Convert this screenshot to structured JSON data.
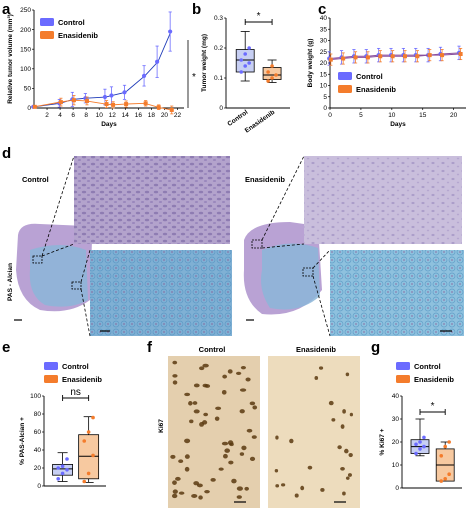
{
  "panels": {
    "a": "a",
    "b": "b",
    "c": "c",
    "d": "d",
    "e": "e",
    "f": "f",
    "g": "g"
  },
  "colors": {
    "control": "#6b6bff",
    "enasidenib": "#f47c2c",
    "control_box": "#c7cff3",
    "enasidenib_box": "#f7c9a0",
    "pas_tissue": "#a98ec6",
    "alcian": "#7fb2d6",
    "ki67_bg": "#e6d3b4",
    "ki67_nuclei": "#5b3a10"
  },
  "legend": {
    "control": "Control",
    "enasidenib": "Enasidenib"
  },
  "histology": {
    "row_label": "PAS - Alcian",
    "control_header": "Control",
    "enasidenib_header": "Enasidenib",
    "ki67_label": "Ki67"
  },
  "chart_data": [
    {
      "id": "a",
      "type": "line",
      "ylabel": "Relative tumor volume (mm³)",
      "xlabel": "Days",
      "xlim": [
        0,
        23
      ],
      "ylim": [
        0,
        250
      ],
      "xticks": [
        2,
        4,
        6,
        8,
        10,
        12,
        14,
        16,
        18,
        20,
        22
      ],
      "yticks": [
        0,
        50,
        100,
        150,
        200,
        250
      ],
      "significance": "*",
      "series": [
        {
          "name": "Control",
          "x": [
            0,
            4,
            6,
            8,
            11,
            12,
            14,
            17,
            19,
            21
          ],
          "y": [
            3,
            12,
            22,
            25,
            28,
            32,
            40,
            82,
            118,
            195
          ],
          "err": [
            2,
            10,
            18,
            12,
            20,
            22,
            18,
            26,
            40,
            50
          ]
        },
        {
          "name": "Enasidenib",
          "x": [
            0,
            4,
            6,
            8,
            11,
            12,
            14,
            17,
            19,
            21
          ],
          "y": [
            3,
            15,
            20,
            18,
            10,
            8,
            10,
            12,
            2,
            -5
          ],
          "err": [
            2,
            10,
            12,
            10,
            9,
            8,
            8,
            7,
            6,
            10
          ]
        }
      ]
    },
    {
      "id": "b",
      "type": "box",
      "ylabel": "Tumor weight (mg)",
      "ylim": [
        0,
        0.3
      ],
      "yticks": [
        0,
        0.1,
        0.2,
        0.3
      ],
      "categories": [
        "Control",
        "Enasidenib"
      ],
      "significance": "*",
      "boxes": [
        {
          "name": "Control",
          "min": 0.09,
          "q1": 0.12,
          "median": 0.16,
          "q3": 0.195,
          "max": 0.255,
          "points": [
            0.12,
            0.14,
            0.15,
            0.16,
            0.18,
            0.2
          ]
        },
        {
          "name": "Enasidenib",
          "min": 0.085,
          "q1": 0.095,
          "median": 0.11,
          "q3": 0.135,
          "max": 0.16,
          "points": [
            0.09,
            0.1,
            0.11,
            0.12,
            0.14
          ]
        }
      ]
    },
    {
      "id": "c",
      "type": "line",
      "ylabel": "Body weight (g)",
      "xlabel": "Days",
      "xlim": [
        0,
        22
      ],
      "ylim": [
        0,
        40
      ],
      "xticks": [
        0,
        5,
        10,
        15,
        20
      ],
      "yticks": [
        0,
        5,
        10,
        15,
        20,
        25,
        30,
        35,
        40
      ],
      "series": [
        {
          "name": "Control",
          "x": [
            0,
            2,
            4,
            6,
            8,
            10,
            12,
            14,
            16,
            18,
            21
          ],
          "y": [
            22,
            22.5,
            23,
            23,
            23.5,
            23.5,
            23.5,
            23.5,
            23.5,
            24,
            24.5
          ],
          "err": [
            3,
            3,
            3,
            3,
            3,
            3,
            3,
            3,
            3,
            3,
            3
          ]
        },
        {
          "name": "Enasidenib",
          "x": [
            0,
            2,
            4,
            6,
            8,
            10,
            12,
            14,
            16,
            18,
            21
          ],
          "y": [
            21.5,
            22,
            22.5,
            22.5,
            23,
            23,
            23,
            23,
            23.5,
            23.5,
            24
          ],
          "err": [
            2.5,
            2.5,
            2.5,
            2.5,
            2.5,
            2.5,
            2.5,
            2.5,
            2.5,
            2.5,
            2.5
          ]
        }
      ]
    },
    {
      "id": "e",
      "type": "box",
      "ylabel": "% PAS-Alcian +",
      "ylim": [
        0,
        100
      ],
      "yticks": [
        0,
        20,
        40,
        60,
        80,
        100
      ],
      "categories": [
        "Control",
        "Enasidenib"
      ],
      "significance": "ns",
      "boxes": [
        {
          "name": "Control",
          "min": 5,
          "q1": 12,
          "median": 19,
          "q3": 24,
          "max": 37,
          "points": [
            8,
            14,
            18,
            20,
            22,
            30
          ]
        },
        {
          "name": "Enasidenib",
          "min": 4,
          "q1": 8,
          "median": 33,
          "q3": 57,
          "max": 77,
          "points": [
            5,
            14,
            34,
            50,
            60,
            76
          ]
        }
      ]
    },
    {
      "id": "g",
      "type": "box",
      "ylabel": "% Ki67 +",
      "ylim": [
        0,
        40
      ],
      "yticks": [
        0,
        10,
        20,
        30,
        40
      ],
      "categories": [
        "Control",
        "Enasidenib"
      ],
      "significance": "*",
      "boxes": [
        {
          "name": "Control",
          "min": 14,
          "q1": 15,
          "median": 18,
          "q3": 21,
          "max": 30,
          "points": [
            15,
            17,
            18,
            19,
            20,
            22
          ]
        },
        {
          "name": "Enasidenib",
          "min": 3,
          "q1": 3,
          "median": 10,
          "q3": 17,
          "max": 20,
          "points": [
            3,
            4,
            6,
            14,
            18,
            20
          ]
        }
      ]
    }
  ]
}
